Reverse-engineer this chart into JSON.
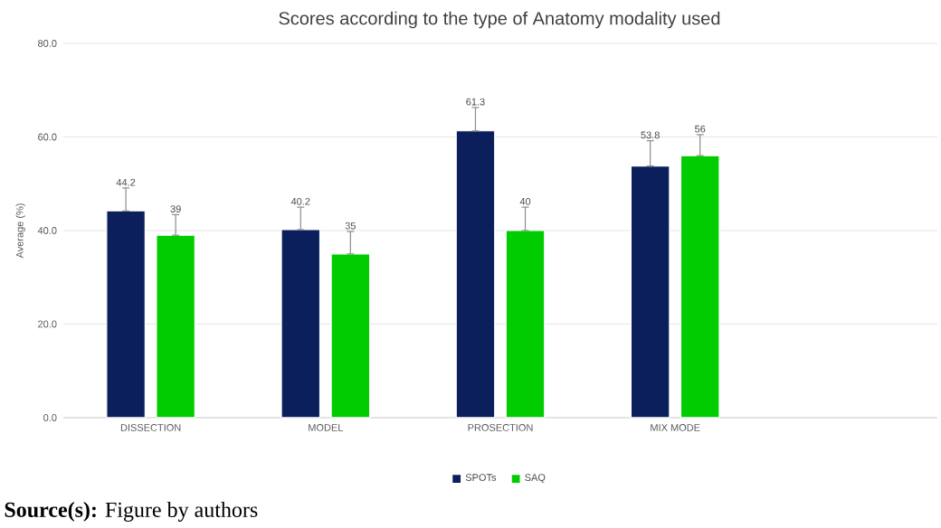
{
  "chart_data": {
    "type": "bar",
    "title": "Scores according to the type of Anatomy modality used",
    "ylabel": "Average (%)",
    "categories": [
      "DISSECTION",
      "MODEL",
      "PROSECTION",
      "MIX MODE",
      null
    ],
    "series": [
      {
        "name": "SPOTs",
        "color": "#0a1f5c",
        "values": [
          44.2,
          40.2,
          61.3,
          53.8,
          null
        ],
        "value_labels": [
          "44.2",
          "40.2",
          "61.3",
          "53.8",
          null
        ],
        "errors": [
          [
            44.2,
            49.1
          ],
          [
            40.2,
            45.0
          ],
          [
            61.3,
            66.3
          ],
          [
            53.8,
            59.2
          ],
          null
        ]
      },
      {
        "name": "SAQ",
        "color": "#00cc00",
        "values": [
          39,
          35,
          40,
          56,
          null
        ],
        "value_labels": [
          "39",
          "35",
          "40",
          "56",
          null
        ],
        "errors": [
          [
            39,
            43.4
          ],
          [
            35,
            39.8
          ],
          [
            40,
            45.0
          ],
          [
            56,
            60.5
          ],
          null
        ]
      }
    ],
    "ylim": [
      0,
      80
    ],
    "yticks": [
      {
        "value": 0,
        "label": "0.0"
      },
      {
        "value": 20,
        "label": "20.0"
      },
      {
        "value": 40,
        "label": "40.0"
      },
      {
        "value": 60,
        "label": "60.0"
      },
      {
        "value": 80,
        "label": "80.0"
      }
    ],
    "grid": "y",
    "legend": "bottom",
    "annotations": [
      "**Source(s):** Figure by authors"
    ]
  }
}
